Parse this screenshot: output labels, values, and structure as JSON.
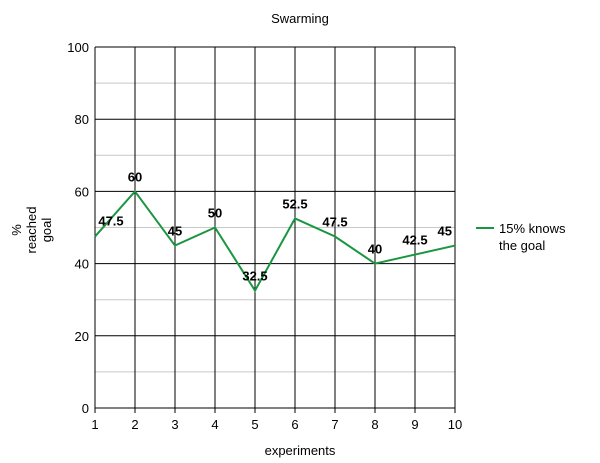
{
  "chart_data": {
    "type": "line",
    "title": "Swarming",
    "xlabel": "experiments",
    "ylabel_lines": [
      "%",
      "reached",
      "goal"
    ],
    "x": [
      1,
      2,
      3,
      4,
      5,
      6,
      7,
      8,
      9,
      10
    ],
    "xlim": [
      1,
      10
    ],
    "ylim": [
      0,
      100
    ],
    "yticks": [
      0,
      20,
      40,
      60,
      80,
      100
    ],
    "xticks": [
      1,
      2,
      3,
      4,
      5,
      6,
      7,
      8,
      9,
      10
    ],
    "grid": true,
    "legend_position": "right",
    "series": [
      {
        "name_lines": [
          "15% knows",
          "the goal"
        ],
        "color": "#1a9641",
        "values": [
          47.5,
          60,
          45,
          50,
          32.5,
          52.5,
          47.5,
          40,
          42.5,
          45
        ],
        "labels": [
          "47.5",
          "60",
          "45",
          "50",
          "32.5",
          "52.5",
          "47.5",
          "40",
          "42.5",
          "45"
        ]
      }
    ]
  }
}
